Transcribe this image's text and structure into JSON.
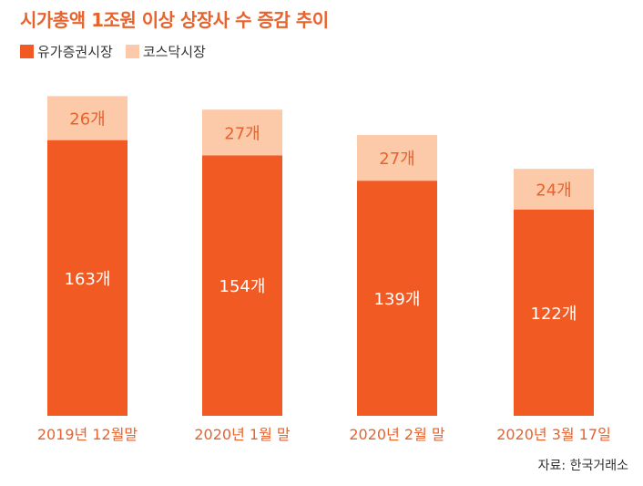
{
  "chart_data": {
    "type": "bar",
    "stacked": true,
    "title": "시가총액 1조원 이상 상장사 수 증감 추이",
    "categories": [
      "2019년 12월말",
      "2020년 1월 말",
      "2020년 2월 말",
      "2020년 3월 17일"
    ],
    "series": [
      {
        "name": "유가증권시장",
        "values": [
          163,
          154,
          139,
          122
        ],
        "labels": [
          "163개",
          "154개",
          "139개",
          "122개"
        ],
        "color": "#f15a22"
      },
      {
        "name": "코스닥시장",
        "values": [
          26,
          27,
          27,
          24
        ],
        "labels": [
          "26개",
          "27개",
          "27개",
          "24개"
        ],
        "color": "#fcc9a9"
      }
    ],
    "legend_position": "top-left",
    "grid": false,
    "ylim": [
      0,
      200
    ],
    "source": "자료: 한국거래소"
  }
}
